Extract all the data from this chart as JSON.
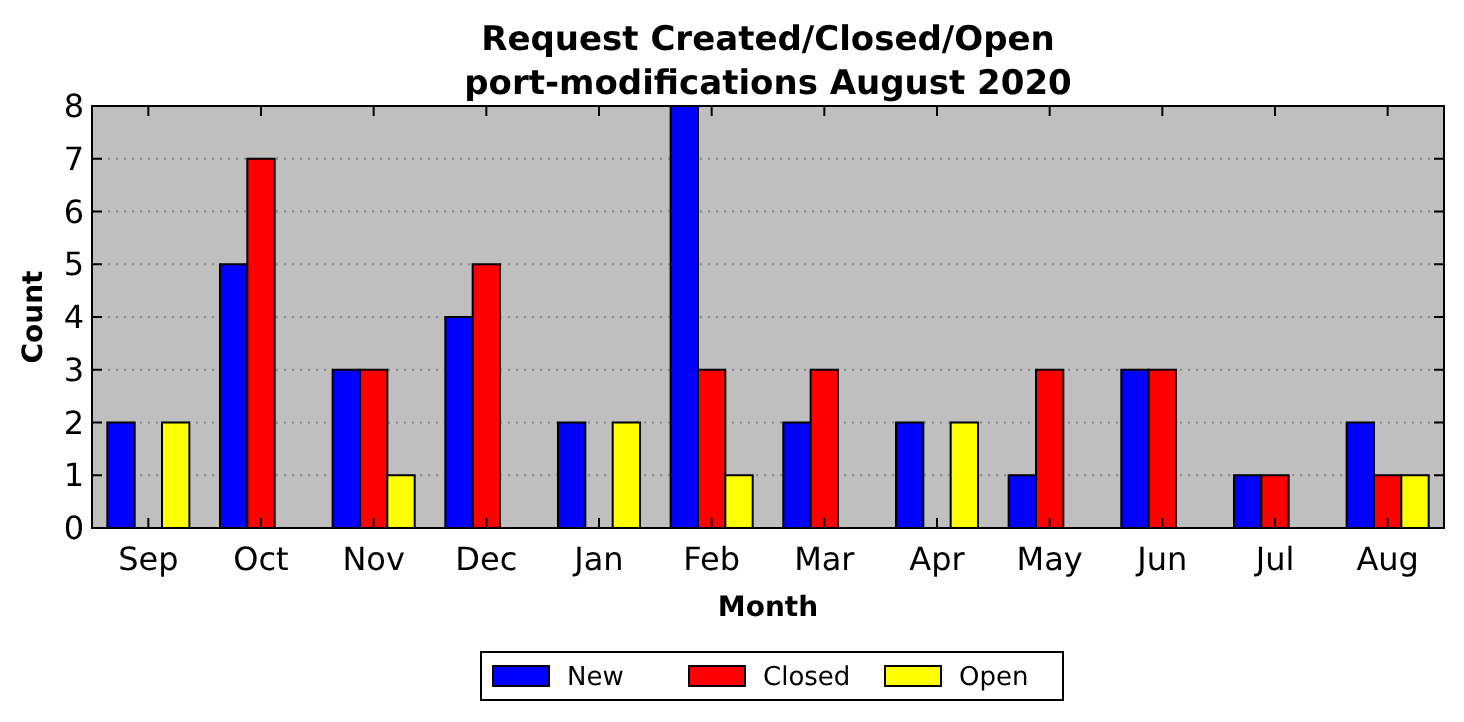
{
  "chart_data": {
    "type": "bar",
    "title": "Request Created/Closed/Open",
    "subtitle": "port-modifications August 2020",
    "xlabel": "Month",
    "ylabel": "Count",
    "categories": [
      "Sep",
      "Oct",
      "Nov",
      "Dec",
      "Jan",
      "Feb",
      "Mar",
      "Apr",
      "May",
      "Jun",
      "Jul",
      "Aug"
    ],
    "series": [
      {
        "name": "New",
        "color": "#0000ff",
        "values": [
          2,
          5,
          3,
          4,
          2,
          8,
          2,
          2,
          1,
          3,
          1,
          2
        ]
      },
      {
        "name": "Closed",
        "color": "#ff0000",
        "values": [
          0,
          7,
          3,
          5,
          0,
          3,
          3,
          0,
          3,
          3,
          1,
          1
        ]
      },
      {
        "name": "Open",
        "color": "#ffff00",
        "values": [
          2,
          0,
          1,
          0,
          2,
          1,
          0,
          2,
          0,
          0,
          0,
          1
        ]
      }
    ],
    "ylim": [
      0,
      8
    ],
    "yticks": [
      0,
      1,
      2,
      3,
      4,
      5,
      6,
      7,
      8
    ],
    "grid": "y",
    "legend": "bottom"
  }
}
